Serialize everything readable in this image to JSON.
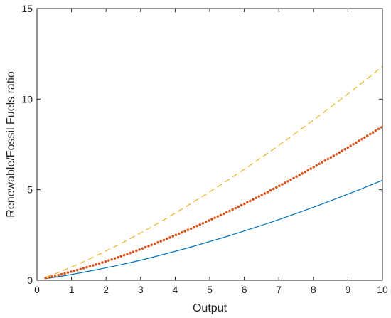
{
  "chart_data": {
    "type": "line",
    "title": "",
    "xlabel": "Output",
    "ylabel": "Renewable/Fossil Fuels ratio",
    "xlim": [
      0,
      10
    ],
    "ylim": [
      0,
      15
    ],
    "xticks": [
      0,
      1,
      2,
      3,
      4,
      5,
      6,
      7,
      8,
      9,
      10
    ],
    "yticks": [
      0,
      5,
      10,
      15
    ],
    "grid": false,
    "series": [
      {
        "color": "#0072BD",
        "style": "solid",
        "x": [
          0.25,
          0.5,
          1,
          1.5,
          2,
          2.5,
          3,
          3.5,
          4,
          4.5,
          5,
          5.5,
          6,
          6.5,
          7,
          7.5,
          8,
          8.5,
          9,
          9.5,
          10
        ],
        "values": [
          0.09,
          0.16,
          0.32,
          0.5,
          0.69,
          0.89,
          1.11,
          1.35,
          1.6,
          1.86,
          2.14,
          2.42,
          2.72,
          3.03,
          3.35,
          3.69,
          4.03,
          4.39,
          4.76,
          5.13,
          5.52
        ]
      },
      {
        "color": "#D95319",
        "style": "dotted",
        "x": [
          0.25,
          0.5,
          1,
          1.5,
          2,
          2.5,
          3,
          3.5,
          4,
          4.5,
          5,
          5.5,
          6,
          6.5,
          7,
          7.5,
          8,
          8.5,
          9,
          9.5,
          10
        ],
        "values": [
          0.13,
          0.23,
          0.48,
          0.75,
          1.05,
          1.37,
          1.72,
          2.09,
          2.48,
          2.89,
          3.32,
          3.76,
          4.22,
          4.7,
          5.2,
          5.71,
          6.24,
          6.78,
          7.33,
          7.9,
          8.48
        ]
      },
      {
        "color": "#EDB120",
        "style": "dashed",
        "x": [
          0.25,
          0.5,
          1,
          1.5,
          2,
          2.5,
          3,
          3.5,
          4,
          4.5,
          5,
          5.5,
          6,
          6.5,
          7,
          7.5,
          8,
          8.5,
          9,
          9.5,
          10
        ],
        "values": [
          0.18,
          0.34,
          0.73,
          1.16,
          1.62,
          2.1,
          2.61,
          3.15,
          3.71,
          4.29,
          4.88,
          5.5,
          6.13,
          6.78,
          7.45,
          8.14,
          8.84,
          9.56,
          10.29,
          11.04,
          11.8
        ]
      }
    ]
  }
}
